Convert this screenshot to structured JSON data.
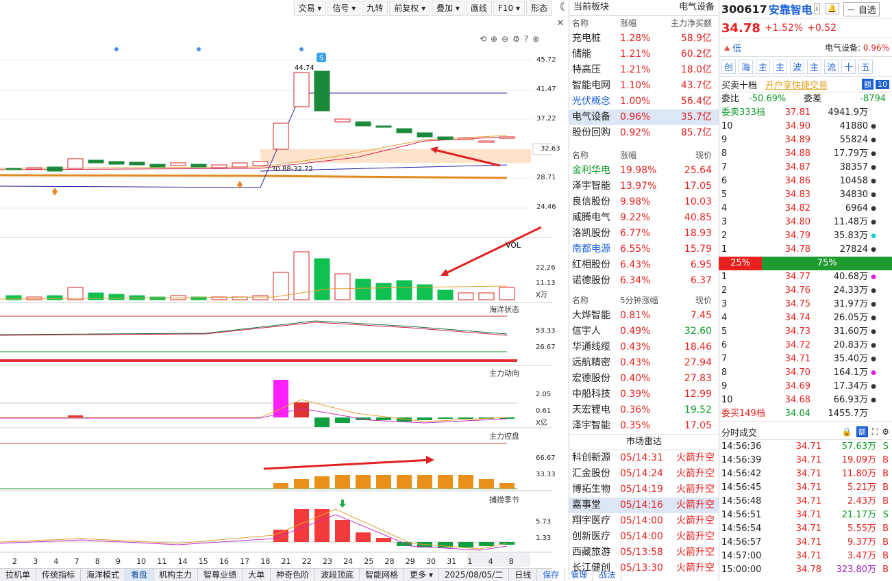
{
  "toolbar": [
    "交易 ▾",
    "信号 ▾",
    "九转",
    "前复权 ▾",
    "叠加 ▾",
    "画线",
    "F10 ▾",
    "形态"
  ],
  "chart": {
    "price_ticks": [
      "45.72",
      "41.47",
      "37.22",
      "32.63",
      "28.71",
      "24.46"
    ],
    "high_label": "44.74",
    "range_label": "30.88-32.72",
    "vol_label": "VOL",
    "vol_ticks": [
      "22.26",
      "11.13",
      "X万"
    ],
    "ocean_label": "海洋状态",
    "ocean_ticks": [
      "53.33",
      "26.67"
    ],
    "zldx_label": "主力动向",
    "zldx_ticks": [
      "2.05",
      "0.61",
      "X亿"
    ],
    "zlkp_label": "主力控盘",
    "zlkp_ticks": [
      "66.67",
      "33.33"
    ],
    "bljj_label": "捕捞季节",
    "bljj_ticks": [
      "5.73",
      "1.33"
    ],
    "x_ticks": [
      "2",
      "3",
      "4",
      "7",
      "8",
      "9",
      "10",
      "11",
      "14",
      "15",
      "16",
      "17",
      "18",
      "21",
      "22",
      "23",
      "24",
      "25",
      "28",
      "29",
      "30",
      "31",
      "1",
      "4",
      "8"
    ],
    "date_label": "2025/08/05/二",
    "period": "日线"
  },
  "bottom_tabs": [
    "拉机单",
    "传统指标",
    "海洋模式",
    "看盘",
    "机构主力",
    "智尊业绩",
    "大单",
    "神奇色阶",
    "波段顶底",
    "智能网格",
    "更多 ▾"
  ],
  "bottom_actions": [
    "保存",
    "管理",
    "战法"
  ],
  "sector": {
    "title": "当前板块",
    "current": "电气设备",
    "headers": [
      "名称",
      "涨幅",
      "主力净买额"
    ],
    "rows": [
      {
        "name": "充电桩",
        "chg": "1.28%",
        "amt": "58.9亿",
        "color": "red"
      },
      {
        "name": "储能",
        "chg": "1.21%",
        "amt": "60.2亿",
        "color": "red"
      },
      {
        "name": "特高压",
        "chg": "1.21%",
        "amt": "18.0亿",
        "color": "red"
      },
      {
        "name": "智能电网",
        "chg": "1.10%",
        "amt": "43.7亿",
        "color": "red"
      },
      {
        "name": "光伏概念",
        "chg": "1.00%",
        "amt": "56.4亿",
        "color": "blue"
      },
      {
        "name": "电气设备",
        "chg": "0.96%",
        "amt": "35.7亿",
        "color": "red"
      },
      {
        "name": "股份回购",
        "chg": "0.92%",
        "amt": "85.7亿",
        "color": "red"
      }
    ]
  },
  "gainers": {
    "headers": [
      "名称",
      "涨幅",
      "现价"
    ],
    "rows": [
      {
        "name": "金利华电",
        "chg": "19.98%",
        "price": "25.64",
        "color": "green"
      },
      {
        "name": "泽宇智能",
        "chg": "13.97%",
        "price": "17.05",
        "color": "red"
      },
      {
        "name": "良信股份",
        "chg": "9.98%",
        "price": "10.03",
        "color": "red"
      },
      {
        "name": "威腾电气",
        "chg": "9.22%",
        "price": "40.85",
        "color": "red"
      },
      {
        "name": "洛凯股份",
        "chg": "6.77%",
        "price": "18.93",
        "color": "red"
      },
      {
        "name": "南都电源",
        "chg": "6.55%",
        "price": "15.79",
        "color": "blue"
      },
      {
        "name": "红相股份",
        "chg": "6.43%",
        "price": "6.95",
        "color": "red"
      },
      {
        "name": "诺德股份",
        "chg": "6.34%",
        "price": "6.37",
        "color": "red"
      }
    ]
  },
  "speed": {
    "headers": [
      "名称",
      "5分钟涨幅",
      "现价"
    ],
    "rows": [
      {
        "name": "大烨智能",
        "chg": "0.81%",
        "price": "7.45",
        "pc": "red"
      },
      {
        "name": "信宇人",
        "chg": "0.49%",
        "price": "32.60",
        "pc": "green"
      },
      {
        "name": "华通线缆",
        "chg": "0.43%",
        "price": "18.46",
        "pc": "red"
      },
      {
        "name": "远航精密",
        "chg": "0.43%",
        "price": "27.94",
        "pc": "red"
      },
      {
        "name": "宏德股份",
        "chg": "0.40%",
        "price": "27.83",
        "pc": "red"
      },
      {
        "name": "中船科技",
        "chg": "0.39%",
        "price": "12.99",
        "pc": "red"
      },
      {
        "name": "天宏锂电",
        "chg": "0.36%",
        "price": "19.52",
        "pc": "green"
      },
      {
        "name": "泽宇智能",
        "chg": "0.35%",
        "price": "17.05",
        "pc": "red"
      }
    ]
  },
  "radar": {
    "title": "市场雷达",
    "rows": [
      {
        "name": "科创新源",
        "time": "05/14:31",
        "event": "火箭升空"
      },
      {
        "name": "汇金股份",
        "time": "05/14:24",
        "event": "火箭升空"
      },
      {
        "name": "博拓生物",
        "time": "05/14:19",
        "event": "火箭升空"
      },
      {
        "name": "嘉事堂",
        "time": "05/14:16",
        "event": "火箭升空"
      },
      {
        "name": "翔宇医疗",
        "time": "05/14:00",
        "event": "火箭升空"
      },
      {
        "name": "创新医疗",
        "time": "05/14:00",
        "event": "火箭升空"
      },
      {
        "name": "西藏旅游",
        "time": "05/13:58",
        "event": "火箭升空"
      },
      {
        "name": "长江健创",
        "time": "05/13:30",
        "event": "火箭升空"
      }
    ]
  },
  "stock": {
    "code": "300617",
    "name": "安靠智电",
    "price": "34.78",
    "pct": "+1.52%",
    "chg": "+0.52",
    "watch": "自选",
    "risk": "低",
    "sector_label": "电气设备:",
    "sector_pct": "0.96%",
    "boards": [
      "创",
      "海",
      "主",
      "主",
      "波",
      "主",
      "流",
      "十",
      "五"
    ],
    "book_title": "买卖十档",
    "book_link": "开户享快捷交易",
    "weibi_label": "委比",
    "weibi": "-50.69%",
    "weicha_label": "委差",
    "weicha": "-8794",
    "sell_total_label": "委卖333档",
    "sell_total_price": "37.81",
    "sell_total_vol": "4941.9万",
    "sells": [
      {
        "lvl": "10",
        "p": "34.90",
        "v": "41880",
        "dot": "●"
      },
      {
        "lvl": "9",
        "p": "34.89",
        "v": "55824",
        "dot": "●"
      },
      {
        "lvl": "8",
        "p": "34.88",
        "v": "17.79万",
        "dot": "●"
      },
      {
        "lvl": "7",
        "p": "34.87",
        "v": "38357",
        "dot": "●"
      },
      {
        "lvl": "6",
        "p": "34.86",
        "v": "10458",
        "dot": "●"
      },
      {
        "lvl": "5",
        "p": "34.83",
        "v": "34830",
        "dot": "●"
      },
      {
        "lvl": "4",
        "p": "34.82",
        "v": "6964",
        "dot": "●"
      },
      {
        "lvl": "3",
        "p": "34.80",
        "v": "11.48万",
        "dot": "●"
      },
      {
        "lvl": "2",
        "p": "34.79",
        "v": "35.83万",
        "dot": "●"
      },
      {
        "lvl": "1",
        "p": "34.78",
        "v": "27824",
        "dot": "●"
      }
    ],
    "sell_ratio": "25%",
    "buy_ratio": "75%",
    "buys": [
      {
        "lvl": "1",
        "p": "34.77",
        "v": "40.68万",
        "dot": "●"
      },
      {
        "lvl": "2",
        "p": "34.76",
        "v": "24.33万",
        "dot": "●"
      },
      {
        "lvl": "3",
        "p": "34.75",
        "v": "31.97万",
        "dot": "●"
      },
      {
        "lvl": "4",
        "p": "34.74",
        "v": "26.05万",
        "dot": "●"
      },
      {
        "lvl": "5",
        "p": "34.73",
        "v": "31.60万",
        "dot": "●"
      },
      {
        "lvl": "6",
        "p": "34.72",
        "v": "20.83万",
        "dot": "●"
      },
      {
        "lvl": "7",
        "p": "34.71",
        "v": "35.40万",
        "dot": "●"
      },
      {
        "lvl": "8",
        "p": "34.70",
        "v": "164.1万",
        "dot": "●"
      },
      {
        "lvl": "9",
        "p": "34.69",
        "v": "17.34万",
        "dot": "●"
      },
      {
        "lvl": "10",
        "p": "34.68",
        "v": "66.93万",
        "dot": "●"
      }
    ],
    "buy_total_label": "委买149档",
    "buy_total_price": "34.04",
    "buy_total_vol": "1455.7万",
    "trades_title": "分时成交",
    "trades": [
      {
        "t": "14:56:36",
        "p": "34.71",
        "v": "57.63万",
        "s": "S"
      },
      {
        "t": "14:56:39",
        "p": "34.71",
        "v": "19.09万",
        "s": "B"
      },
      {
        "t": "14:56:42",
        "p": "34.71",
        "v": "11.80万",
        "s": "B"
      },
      {
        "t": "14:56:45",
        "p": "34.71",
        "v": "5.21万",
        "s": "B"
      },
      {
        "t": "14:56:48",
        "p": "34.71",
        "v": "2.43万",
        "s": "B"
      },
      {
        "t": "14:56:51",
        "p": "34.71",
        "v": "21.17万",
        "s": "S"
      },
      {
        "t": "14:56:54",
        "p": "34.71",
        "v": "5.55万",
        "s": "B"
      },
      {
        "t": "14:56:57",
        "p": "34.71",
        "v": "9.37万",
        "s": "B"
      },
      {
        "t": "14:57:00",
        "p": "34.71",
        "v": "3.47万",
        "s": "B"
      },
      {
        "t": "15:00:00",
        "p": "34.78",
        "v": "323.80万",
        "s": "B"
      }
    ]
  }
}
